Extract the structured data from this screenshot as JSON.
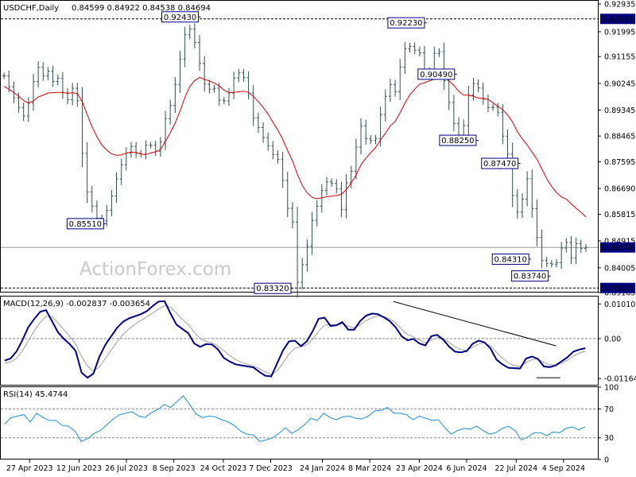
{
  "header": {
    "symbol": "USDCHF,Daily",
    "ohlc": "0.84599 0.84922 0.84538 0.84694",
    "macd": "MACD(12,26,9) -0.002837 -0.003654",
    "rsi": "RSI(14) 45.4744"
  },
  "watermark": "ActionForex.com",
  "colors": {
    "bars": "#2f4f4f",
    "ma": "#d40000",
    "macd": "#000080",
    "signal": "#a0a0a0",
    "rsi": "#1e8fd8",
    "price_tag": "#000080"
  },
  "chart_data": [
    {
      "type": "line",
      "panel": "price",
      "chart_style": "ohlc bars with moving average",
      "ylim": [
        0.83165,
        0.92935
      ],
      "y_ticks": [
        "0.92935",
        "0.91995",
        "0.91155",
        "0.90245",
        "0.89345",
        "0.88465",
        "0.87595",
        "0.86690",
        "0.85815",
        "0.84915",
        "0.84005",
        "0.83165"
      ],
      "x_ticks": [
        "27 Apr 2023",
        "12 Jun 2023",
        "26 Jul 2023",
        "8 Sep 2023",
        "24 Oct 2023",
        "7 Dec 2023",
        "24 Jan 2024",
        "8 Mar 2024",
        "23 Apr 2024",
        "6 Jun 2024",
        "22 Jul 2024",
        "4 Sep 2024"
      ],
      "current_price": "0.84694",
      "levels": [
        {
          "label": "0.92430",
          "value": 0.9243,
          "style": "dashed"
        },
        {
          "label": "0.83320",
          "value": 0.8332,
          "style": "dashed"
        },
        {
          "label": "0.84694",
          "value": 0.84694,
          "style": "solid"
        }
      ],
      "annotations": [
        {
          "text": "0.85510",
          "x": "7 Jul 2023",
          "y": 0.8551
        },
        {
          "text": "0.92430",
          "x": "3 Oct 2023",
          "y": 0.9243
        },
        {
          "text": "0.83320",
          "x": "28 Dec 2023",
          "y": 0.8332
        },
        {
          "text": "0.92230",
          "x": "30 Apr 2024",
          "y": 0.9223
        },
        {
          "text": "0.90490",
          "x": "28 May 2024",
          "y": 0.9049
        },
        {
          "text": "0.88250",
          "x": "17 Jun 2024",
          "y": 0.8825
        },
        {
          "text": "0.87470",
          "x": "26 Jul 2024",
          "y": 0.8747
        },
        {
          "text": "0.84310",
          "x": "5 Aug 2024",
          "y": 0.8431
        },
        {
          "text": "0.83740",
          "x": "23 Aug 2024",
          "y": 0.8374
        }
      ],
      "series": [
        {
          "style": "bars",
          "values": [
            0.905,
            0.9013,
            0.8976,
            0.8943,
            0.8914,
            0.8958,
            0.9031,
            0.9079,
            0.905,
            0.9066,
            0.9031,
            0.9042,
            0.8993,
            0.8969,
            0.9008,
            0.8966,
            0.8788,
            0.8657,
            0.8609,
            0.8568,
            0.8559,
            0.8595,
            0.8643,
            0.8701,
            0.8749,
            0.8789,
            0.8811,
            0.8788,
            0.8785,
            0.8815,
            0.8815,
            0.8794,
            0.8826,
            0.8905,
            0.895,
            0.9021,
            0.9107,
            0.9189,
            0.9208,
            0.9163,
            0.9092,
            0.9022,
            0.9005,
            0.9008,
            0.8968,
            0.8965,
            0.8992,
            0.9043,
            0.906,
            0.9044,
            0.8992,
            0.8908,
            0.8875,
            0.8841,
            0.8813,
            0.8784,
            0.8768,
            0.8696,
            0.8602,
            0.8555,
            0.8351,
            0.8411,
            0.8473,
            0.8561,
            0.8609,
            0.8662,
            0.8691,
            0.8686,
            0.8667,
            0.8597,
            0.8688,
            0.8727,
            0.8809,
            0.8881,
            0.8837,
            0.8831,
            0.8838,
            0.8919,
            0.8981,
            0.9021,
            0.8996,
            0.908,
            0.9142,
            0.915,
            0.9137,
            0.9128,
            0.9068,
            0.9066,
            0.9126,
            0.9132,
            0.9034,
            0.896,
            0.8888,
            0.8834,
            0.8882,
            0.8985,
            0.9024,
            0.9009,
            0.8971,
            0.8943,
            0.8944,
            0.8927,
            0.8846,
            0.8785,
            0.8645,
            0.8589,
            0.8633,
            0.8702,
            0.8601,
            0.8503,
            0.8425,
            0.8415,
            0.8413,
            0.8418,
            0.8467,
            0.8486,
            0.8434,
            0.8482,
            0.8466,
            0.8469
          ]
        },
        {
          "style": "moving average",
          "values": [
            0.9015,
            0.9005,
            0.8994,
            0.8981,
            0.8967,
            0.8958,
            0.8965,
            0.8979,
            0.8985,
            0.8992,
            0.8993,
            0.8994,
            0.8994,
            0.8991,
            0.8993,
            0.899,
            0.8963,
            0.8919,
            0.8878,
            0.8844,
            0.8816,
            0.8799,
            0.8786,
            0.8781,
            0.8783,
            0.8788,
            0.8792,
            0.8791,
            0.8785,
            0.8784,
            0.8789,
            0.8793,
            0.8801,
            0.8828,
            0.8857,
            0.889,
            0.8931,
            0.8977,
            0.9014,
            0.9034,
            0.9045,
            0.9038,
            0.9033,
            0.9026,
            0.9016,
            0.9002,
            0.8993,
            0.8994,
            0.8996,
            0.8998,
            0.8994,
            0.8981,
            0.8963,
            0.8944,
            0.8921,
            0.8893,
            0.8866,
            0.8836,
            0.8797,
            0.8763,
            0.8717,
            0.8679,
            0.8654,
            0.8639,
            0.8634,
            0.8637,
            0.8641,
            0.8643,
            0.8645,
            0.8649,
            0.8665,
            0.8687,
            0.8714,
            0.8749,
            0.8771,
            0.879,
            0.8808,
            0.8833,
            0.8856,
            0.8881,
            0.8896,
            0.8925,
            0.8958,
            0.8986,
            0.9005,
            0.9022,
            0.9027,
            0.9033,
            0.9039,
            0.9053,
            0.9049,
            0.9033,
            0.9018,
            0.8998,
            0.8985,
            0.8985,
            0.8981,
            0.8975,
            0.8974,
            0.8971,
            0.8959,
            0.8948,
            0.8935,
            0.8918,
            0.8894,
            0.8861,
            0.8837,
            0.8816,
            0.8792,
            0.8768,
            0.8735,
            0.8702,
            0.8676,
            0.8655,
            0.864,
            0.8633,
            0.8617,
            0.8602,
            0.8588,
            0.8573
          ]
        }
      ]
    },
    {
      "type": "line",
      "panel": "macd",
      "title": "MACD(12,26,9) -0.002837 -0.003654",
      "ylim": [
        -0.01345,
        0.01225
      ],
      "y_ticks": [
        "0.010101",
        "0.00",
        "-0.011645"
      ],
      "series": [
        {
          "style": "macd",
          "values": [
            -0.0064,
            -0.0058,
            -0.0038,
            -0.0005,
            0.0033,
            0.0057,
            0.0078,
            0.0083,
            0.0051,
            0.0019,
            -0.0001,
            -0.0016,
            -0.0036,
            -0.0099,
            -0.0114,
            -0.0102,
            -0.0053,
            -0.0018,
            0.0007,
            0.0032,
            0.0049,
            0.0059,
            0.0065,
            0.0071,
            0.008,
            0.0095,
            0.0108,
            0.0109,
            0.0073,
            0.0041,
            0.0028,
            0.0016,
            -0.0014,
            -0.0024,
            -0.0016,
            -0.0017,
            -0.0031,
            -0.0056,
            -0.0067,
            -0.0075,
            -0.0078,
            -0.0081,
            -0.0084,
            -0.0097,
            -0.0108,
            -0.011,
            -0.0072,
            -0.0034,
            -0.0008,
            -0.0006,
            -0.0022,
            -0.0008,
            0.0022,
            0.0058,
            0.0061,
            0.0037,
            0.0039,
            0.0048,
            0.0026,
            0.0026,
            0.0051,
            0.0067,
            0.0073,
            0.0071,
            0.0062,
            0.0051,
            0.0033,
            0.0007,
            -0.0005,
            -0.0001,
            -0.0014,
            -0.002,
            0.0007,
            0.0011,
            -0.0003,
            -0.0023,
            -0.0038,
            -0.004,
            -0.0036,
            -0.0015,
            -0.0006,
            -0.0011,
            -0.0029,
            -0.0061,
            -0.0075,
            -0.0085,
            -0.0086,
            -0.0087,
            -0.0058,
            -0.0052,
            -0.0059,
            -0.0081,
            -0.0083,
            -0.0078,
            -0.0066,
            -0.0054,
            -0.0038,
            -0.0032,
            -0.0028
          ]
        },
        {
          "style": "signal",
          "values": [
            -0.0072,
            -0.0068,
            -0.0058,
            -0.0036,
            -0.0007,
            0.0022,
            0.0047,
            0.0065,
            0.0064,
            0.0046,
            0.0026,
            0.0007,
            -0.0015,
            -0.0052,
            -0.008,
            -0.0095,
            -0.0083,
            -0.0058,
            -0.0033,
            -0.0009,
            0.0012,
            0.0028,
            0.0042,
            0.0053,
            0.0063,
            0.0074,
            0.0086,
            0.0096,
            0.0091,
            0.0074,
            0.0056,
            0.0041,
            0.0018,
            0.0001,
            -0.0008,
            -0.0012,
            -0.0021,
            -0.0035,
            -0.0049,
            -0.0061,
            -0.0069,
            -0.0075,
            -0.008,
            -0.0087,
            -0.0097,
            -0.0104,
            -0.0094,
            -0.0071,
            -0.0045,
            -0.0028,
            -0.0024,
            -0.0018,
            -0.0002,
            0.0022,
            0.0039,
            0.0041,
            0.0039,
            0.0043,
            0.0036,
            0.0031,
            0.004,
            0.0052,
            0.0061,
            0.0066,
            0.0064,
            0.0058,
            0.0046,
            0.0027,
            0.0012,
            0.0005,
            -0.0004,
            -0.0012,
            -0.0005,
            0.0003,
            0.0001,
            -0.0011,
            -0.0024,
            -0.0032,
            -0.0034,
            -0.0025,
            -0.0016,
            -0.0013,
            -0.0021,
            -0.004,
            -0.0057,
            -0.0071,
            -0.0078,
            -0.0082,
            -0.007,
            -0.0061,
            -0.006,
            -0.007,
            -0.0076,
            -0.0077,
            -0.0072,
            -0.0063,
            -0.0051,
            -0.0042,
            -0.0037
          ]
        }
      ],
      "annotations": [
        {
          "text": "trendline",
          "from": [
            "30 Mar 2024",
            0.0108
          ],
          "to": [
            "28 Aug 2024",
            -0.0021
          ]
        }
      ]
    },
    {
      "type": "line",
      "panel": "rsi",
      "title": "RSI(14) 45.4744",
      "ylim": [
        0,
        100
      ],
      "y_ticks": [
        "100",
        "70",
        "30",
        "0"
      ],
      "levels": [
        70,
        30
      ],
      "series": [
        {
          "style": "rsi",
          "values": [
            49,
            58,
            60,
            62,
            52,
            64,
            58,
            54,
            54,
            47,
            46,
            39,
            25,
            29,
            36,
            40,
            48,
            56,
            62,
            64,
            66,
            60,
            58,
            65,
            69,
            76,
            72,
            80,
            88,
            76,
            63,
            58,
            60,
            59,
            55,
            52,
            47,
            39,
            35,
            34,
            25,
            27,
            30,
            36,
            44,
            36,
            41,
            48,
            57,
            54,
            64,
            58,
            55,
            59,
            60,
            57,
            56,
            60,
            67,
            68,
            72,
            64,
            64,
            62,
            55,
            60,
            57,
            54,
            55,
            44,
            35,
            40,
            43,
            42,
            46,
            40,
            35,
            37,
            43,
            46,
            40,
            27,
            31,
            37,
            37,
            33,
            38,
            37,
            43,
            45,
            41,
            45
          ]
        }
      ]
    }
  ]
}
